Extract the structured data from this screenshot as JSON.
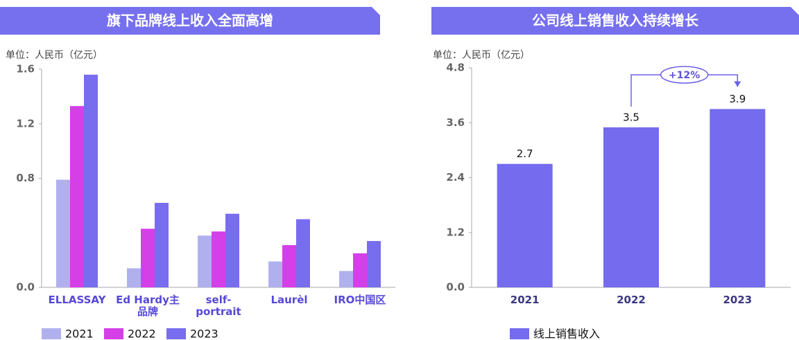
{
  "chart_data": [
    {
      "type": "bar",
      "title": "旗下品牌线上收入全面高增",
      "unit_label": "单位：人民币（亿元）",
      "categories": [
        "ELLASSAY",
        "Ed Hardy主品牌",
        "self-portrait",
        "Laurèl",
        "IRO中国区"
      ],
      "series": [
        {
          "name": "2021",
          "color": "#b1b0ef",
          "values": [
            0.79,
            0.14,
            0.38,
            0.19,
            0.12
          ]
        },
        {
          "name": "2022",
          "color": "#d43fe8",
          "values": [
            1.33,
            0.43,
            0.41,
            0.31,
            0.25
          ]
        },
        {
          "name": "2023",
          "color": "#786cef",
          "values": [
            1.56,
            0.62,
            0.54,
            0.5,
            0.34
          ]
        }
      ],
      "ylim": [
        0,
        1.6
      ],
      "yticks": [
        {
          "value": 0,
          "label": "0.0"
        },
        0.8,
        1.2,
        1.6
      ]
    },
    {
      "type": "bar",
      "title": "公司线上销售收入持续增长",
      "unit_label": "单位：人民币（亿元）",
      "categories": [
        "2021",
        "2022",
        "2023"
      ],
      "series": [
        {
          "name": "线上销售收入",
          "color": "#746bee",
          "values": [
            2.7,
            3.5,
            3.9
          ]
        }
      ],
      "annotation": "+12%",
      "ylim": [
        0,
        4.8
      ],
      "yticks": [
        {
          "value": 0,
          "label": "0.0"
        },
        1.2,
        2.4,
        3.6,
        4.8
      ]
    }
  ]
}
